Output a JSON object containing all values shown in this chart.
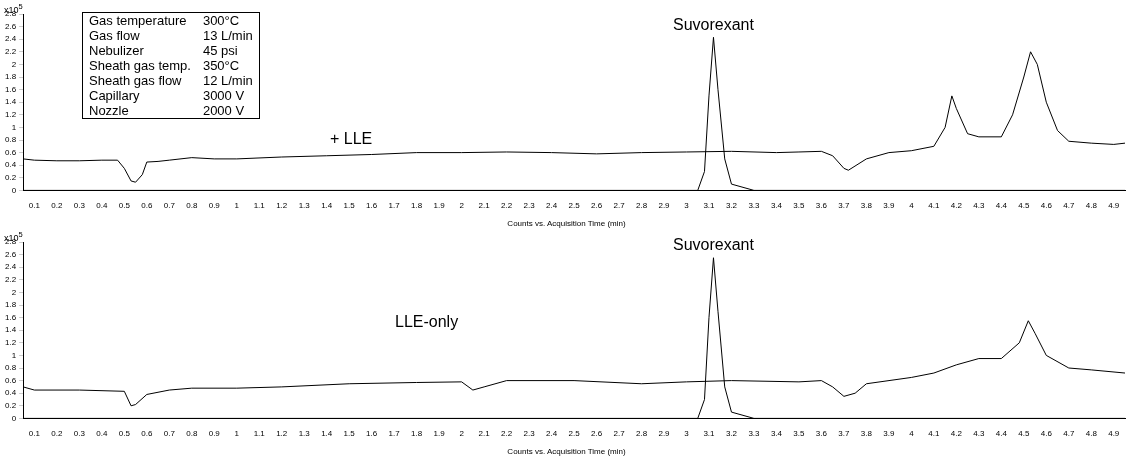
{
  "chart_data": [
    {
      "type": "line",
      "xlabel": "Counts vs. Acquisition Time (min)",
      "ylabel": "x10$^{5}$",
      "xlim": [
        0.05,
        4.95
      ],
      "ylim": [
        0,
        2.8
      ],
      "xticks": [
        0.1,
        0.2,
        0.3,
        0.4,
        0.5,
        0.6,
        0.7,
        0.8,
        0.9,
        1,
        1.1,
        1.2,
        1.3,
        1.4,
        1.5,
        1.6,
        1.7,
        1.8,
        1.9,
        2,
        2.1,
        2.2,
        2.3,
        2.4,
        2.5,
        2.6,
        2.7,
        2.8,
        2.9,
        3,
        3.1,
        3.2,
        3.3,
        3.4,
        3.5,
        3.6,
        3.7,
        3.8,
        3.9,
        4,
        4.1,
        4.2,
        4.3,
        4.4,
        4.5,
        4.6,
        4.7,
        4.8,
        4.9
      ],
      "yticks": [
        0,
        0.2,
        0.4,
        0.6,
        0.8,
        1,
        1.2,
        1.4,
        1.6,
        1.8,
        2,
        2.2,
        2.4,
        2.6,
        2.8
      ],
      "legend": false,
      "grid": false,
      "marker": "none",
      "series": [
        {
          "color": "#000000",
          "x": [
            0.05,
            0.1,
            0.2,
            0.3,
            0.4,
            0.47,
            0.5,
            0.53,
            0.55,
            0.58,
            0.6,
            0.65,
            0.7,
            0.8,
            0.9,
            1.0,
            1.2,
            1.4,
            1.6,
            1.8,
            2.0,
            2.2,
            2.4,
            2.6,
            2.8,
            3.0,
            3.2,
            3.4,
            3.5,
            3.6,
            3.65,
            3.7,
            3.72,
            3.8,
            3.9,
            4.0,
            4.1,
            4.15,
            4.18,
            4.2,
            4.25,
            4.3,
            4.4,
            4.45,
            4.5,
            4.53,
            4.56,
            4.6,
            4.65,
            4.7,
            4.8,
            4.9,
            4.95
          ],
          "values": [
            0.5,
            0.48,
            0.47,
            0.47,
            0.48,
            0.48,
            0.35,
            0.15,
            0.13,
            0.25,
            0.45,
            0.46,
            0.48,
            0.52,
            0.5,
            0.5,
            0.53,
            0.55,
            0.57,
            0.6,
            0.6,
            0.61,
            0.6,
            0.58,
            0.6,
            0.61,
            0.62,
            0.6,
            0.61,
            0.62,
            0.55,
            0.35,
            0.32,
            0.5,
            0.6,
            0.63,
            0.7,
            1.0,
            1.5,
            1.3,
            0.9,
            0.85,
            0.85,
            1.2,
            1.8,
            2.2,
            2.0,
            1.4,
            0.95,
            0.78,
            0.75,
            0.73,
            0.75
          ]
        },
        {
          "color": "#000000",
          "x": [
            0.05,
            3.05,
            3.08,
            3.1,
            3.12,
            3.14,
            3.17,
            3.2,
            3.3,
            4.95
          ],
          "values": [
            0,
            0,
            0.3,
            1.5,
            2.43,
            1.6,
            0.5,
            0.1,
            0,
            0
          ]
        }
      ],
      "annotations": [
        {
          "text": "Suvorexant",
          "x": 3.12,
          "y": 2.43
        },
        "+ LLE",
        "Gas temperature",
        "300°C",
        "Gas flow",
        "13 L/min",
        "Nebulizer",
        "45 psi",
        "Sheath gas temp.",
        "350°C",
        "Sheath gas flow",
        "12 L/min",
        "Capillary",
        "3000 V",
        "Nozzle",
        "2000 V"
      ]
    },
    {
      "type": "line",
      "xlabel": "Counts vs. Acquisition Time (min)",
      "ylabel": "x10$^{5}$",
      "xlim": [
        0.05,
        4.95
      ],
      "ylim": [
        0,
        2.8
      ],
      "xticks": [
        0.1,
        0.2,
        0.3,
        0.4,
        0.5,
        0.6,
        0.7,
        0.8,
        0.9,
        1,
        1.1,
        1.2,
        1.3,
        1.4,
        1.5,
        1.6,
        1.7,
        1.8,
        1.9,
        2,
        2.1,
        2.2,
        2.3,
        2.4,
        2.5,
        2.6,
        2.7,
        2.8,
        2.9,
        3,
        3.1,
        3.2,
        3.3,
        3.4,
        3.5,
        3.6,
        3.7,
        3.8,
        3.9,
        4,
        4.1,
        4.2,
        4.3,
        4.4,
        4.5,
        4.6,
        4.7,
        4.8,
        4.9
      ],
      "yticks": [
        0,
        0.2,
        0.4,
        0.6,
        0.8,
        1,
        1.2,
        1.4,
        1.6,
        1.8,
        2,
        2.2,
        2.4,
        2.6,
        2.8
      ],
      "legend": false,
      "grid": false,
      "marker": "none",
      "series": [
        {
          "color": "#000000",
          "x": [
            0.05,
            0.1,
            0.3,
            0.5,
            0.53,
            0.55,
            0.6,
            0.7,
            0.8,
            1.0,
            1.2,
            1.5,
            1.8,
            2.0,
            2.05,
            2.1,
            2.2,
            2.5,
            2.8,
            3.0,
            3.2,
            3.5,
            3.6,
            3.65,
            3.7,
            3.75,
            3.8,
            4.0,
            4.1,
            4.2,
            4.3,
            4.4,
            4.48,
            4.52,
            4.55,
            4.6,
            4.7,
            4.8,
            4.95
          ],
          "values": [
            0.5,
            0.45,
            0.45,
            0.43,
            0.2,
            0.22,
            0.38,
            0.45,
            0.48,
            0.48,
            0.5,
            0.55,
            0.57,
            0.58,
            0.45,
            0.5,
            0.6,
            0.6,
            0.55,
            0.58,
            0.6,
            0.58,
            0.6,
            0.5,
            0.35,
            0.4,
            0.55,
            0.65,
            0.72,
            0.85,
            0.95,
            0.95,
            1.2,
            1.55,
            1.35,
            1.0,
            0.8,
            0.77,
            0.72
          ]
        },
        {
          "color": "#000000",
          "x": [
            0.05,
            3.05,
            3.08,
            3.1,
            3.12,
            3.14,
            3.17,
            3.2,
            3.3,
            4.95
          ],
          "values": [
            0,
            0,
            0.3,
            1.6,
            2.55,
            1.7,
            0.5,
            0.1,
            0,
            0
          ]
        }
      ],
      "annotations": [
        {
          "text": "Suvorexant",
          "x": 3.12,
          "y": 2.55
        },
        "LLE-only"
      ]
    }
  ]
}
